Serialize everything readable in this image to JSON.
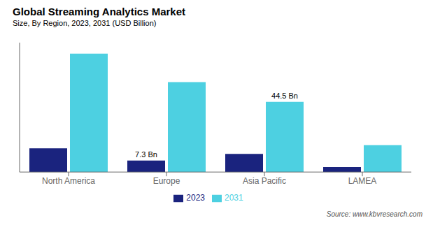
{
  "chart_data": {
    "type": "bar",
    "title": "Global Streaming Analytics Market",
    "subtitle": "Size, By Region, 2023, 2031 (USD Billion)",
    "source": "Source: www.kbvresearch.com",
    "categories": [
      "North America",
      "Europe",
      "Asia Pacific",
      "LAMEA"
    ],
    "series": [
      {
        "name": "2023",
        "color": "#1a237e",
        "values": [
          15.0,
          7.3,
          11.5,
          3.2
        ]
      },
      {
        "name": "2031",
        "color": "#4dd0e1",
        "values": [
          75.0,
          57.0,
          44.5,
          17.0
        ]
      }
    ],
    "ylim": [
      0,
      82
    ],
    "yticks": [],
    "tick_labels": "x",
    "grid": false,
    "legend": "bottom",
    "annotations": [
      {
        "text": "7.3 Bn",
        "category": "Europe",
        "series": "2023"
      },
      {
        "text": "44.5 Bn",
        "category": "Asia Pacific",
        "series": "2031"
      }
    ]
  }
}
